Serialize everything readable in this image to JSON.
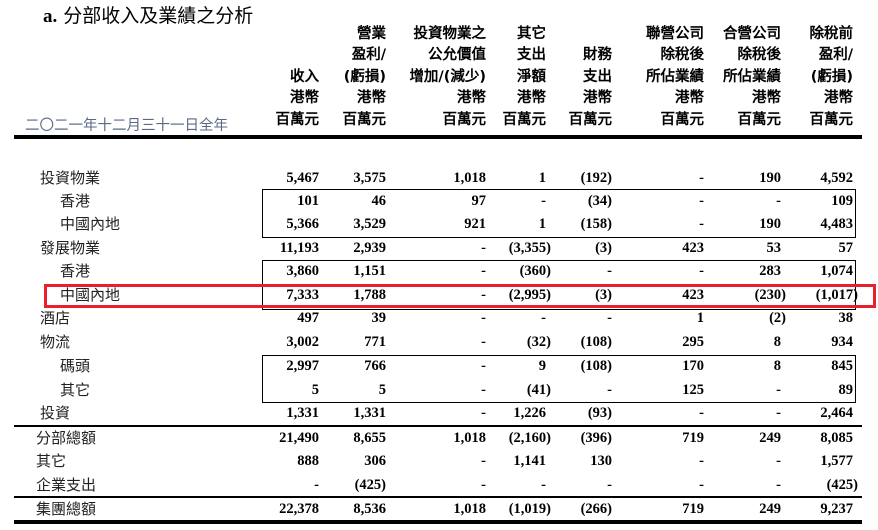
{
  "title_prefix": "a.",
  "title": "分部收入及業績之分析",
  "period": "二〇二一年十二月三十一日全年",
  "columns": [
    [
      "收入",
      "港幣",
      "百萬元"
    ],
    [
      "營業",
      "盈利/",
      "(虧損)",
      "港幣",
      "百萬元"
    ],
    [
      "投資物業之",
      "公允價值",
      "增加/(減少)",
      "港幣",
      "百萬元"
    ],
    [
      "其它",
      "支出",
      "淨額",
      "港幣",
      "百萬元"
    ],
    [
      "財務",
      "支出",
      "港幣",
      "百萬元"
    ],
    [
      "聯營公司",
      "除稅後",
      "所佔業績",
      "港幣",
      "百萬元"
    ],
    [
      "合營公司",
      "除稅後",
      "所佔業績",
      "港幣",
      "百萬元"
    ],
    [
      "除稅前",
      "盈利/",
      "(虧損)",
      "港幣",
      "百萬元"
    ]
  ],
  "rows": [
    {
      "label": "投資物業",
      "level": 0,
      "values": [
        "5,467",
        "3,575",
        "1,018",
        "1",
        "(192)",
        "-",
        "190",
        "4,592"
      ]
    },
    {
      "label": "香港",
      "level": 1,
      "values": [
        "101",
        "46",
        "97",
        "-",
        "(34)",
        "-",
        "-",
        "109"
      ]
    },
    {
      "label": "中國內地",
      "level": 1,
      "values": [
        "5,366",
        "3,529",
        "921",
        "1",
        "(158)",
        "-",
        "190",
        "4,483"
      ]
    },
    {
      "label": "發展物業",
      "level": 0,
      "values": [
        "11,193",
        "2,939",
        "-",
        "(3,355)",
        "(3)",
        "423",
        "53",
        "57"
      ]
    },
    {
      "label": "香港",
      "level": 1,
      "values": [
        "3,860",
        "1,151",
        "-",
        "(360)",
        "-",
        "-",
        "283",
        "1,074"
      ]
    },
    {
      "label": "中國內地",
      "level": 1,
      "highlighted": true,
      "values": [
        "7,333",
        "1,788",
        "-",
        "(2,995)",
        "(3)",
        "423",
        "(230)",
        "(1,017)"
      ]
    },
    {
      "label": "酒店",
      "level": 0,
      "values": [
        "497",
        "39",
        "-",
        "-",
        "-",
        "1",
        "(2)",
        "38"
      ]
    },
    {
      "label": "物流",
      "level": 0,
      "values": [
        "3,002",
        "771",
        "-",
        "(32)",
        "(108)",
        "295",
        "8",
        "934"
      ]
    },
    {
      "label": "碼頭",
      "level": 1,
      "values": [
        "2,997",
        "766",
        "-",
        "9",
        "(108)",
        "170",
        "8",
        "845"
      ]
    },
    {
      "label": "其它",
      "level": 1,
      "values": [
        "5",
        "5",
        "-",
        "(41)",
        "-",
        "125",
        "-",
        "89"
      ]
    },
    {
      "label": "投資",
      "level": 0,
      "values": [
        "1,331",
        "1,331",
        "-",
        "1,226",
        "(93)",
        "-",
        "-",
        "2,464"
      ]
    },
    {
      "label": "分部總額",
      "level": 2,
      "values": [
        "21,490",
        "8,655",
        "1,018",
        "(2,160)",
        "(396)",
        "719",
        "249",
        "8,085"
      ]
    },
    {
      "label": "其它",
      "level": 2,
      "values": [
        "888",
        "306",
        "-",
        "1,141",
        "130",
        "-",
        "-",
        "1,577"
      ]
    },
    {
      "label": "企業支出",
      "level": 2,
      "values": [
        "-",
        "(425)",
        "-",
        "-",
        "-",
        "-",
        "-",
        "(425)"
      ]
    },
    {
      "label": "集團總額",
      "level": 2,
      "values": [
        "22,378",
        "8,536",
        "1,018",
        "(1,019)",
        "(266)",
        "719",
        "249",
        "9,237"
      ]
    }
  ],
  "highlight_color": "#e8202a"
}
